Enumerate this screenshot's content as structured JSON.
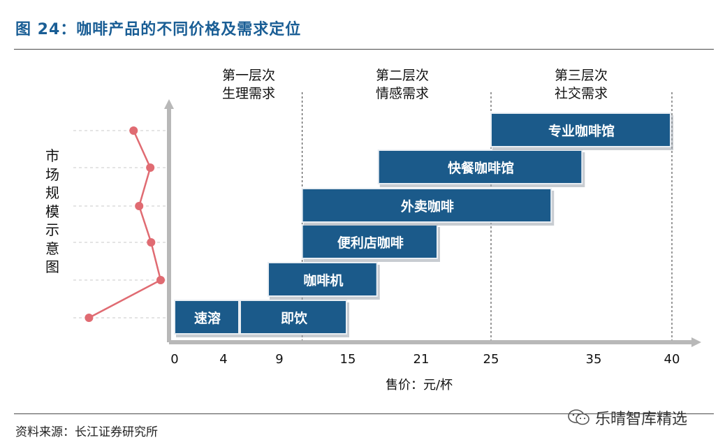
{
  "title": "图 24：咖啡产品的不同价格及需求定位",
  "source": "资料来源：长江证券研究所",
  "watermark": "乐晴智库精选",
  "colors": {
    "title": "#1a5e95",
    "bar_fill": "#1b5a8a",
    "bar_border": "#e9eef3",
    "line": "#e06b72",
    "axis": "#b8b8b8"
  },
  "chart_data": {
    "type": "bar",
    "orientation": "horizontal-range",
    "xlabel": "售价：元/杯",
    "ylabel": "市场规模示意图",
    "x_ticks": [
      "0",
      "4",
      "9",
      "15",
      "21",
      "25",
      "35",
      "40"
    ],
    "tiers": [
      {
        "line1": "第一层次",
        "line2": "生理需求"
      },
      {
        "line1": "第二层次",
        "line2": "情感需求"
      },
      {
        "line1": "第三层次",
        "line2": "社交需求"
      }
    ],
    "tier_boundaries": [
      "11",
      "25",
      "40"
    ],
    "bars": [
      {
        "label": "速溶",
        "start": 0,
        "end": 5.5,
        "row": 0
      },
      {
        "label": "即饮",
        "start": 5.5,
        "end": 15,
        "row": 0
      },
      {
        "label": "咖啡机",
        "start": 8,
        "end": 17.5,
        "row": 1
      },
      {
        "label": "便利店咖啡",
        "start": 11,
        "end": 22,
        "row": 2
      },
      {
        "label": "外卖咖啡",
        "start": 11,
        "end": 31,
        "row": 3
      },
      {
        "label": "快餐咖啡馆",
        "start": 17.5,
        "end": 34,
        "row": 4
      },
      {
        "label": "专业咖啡馆",
        "start": 25,
        "end": 40,
        "row": 5
      }
    ],
    "market_size_line": {
      "note": "relative market scale per row (bottom to top)",
      "values": [
        0.1,
        1.0,
        0.88,
        0.73,
        0.87,
        0.66
      ]
    }
  }
}
